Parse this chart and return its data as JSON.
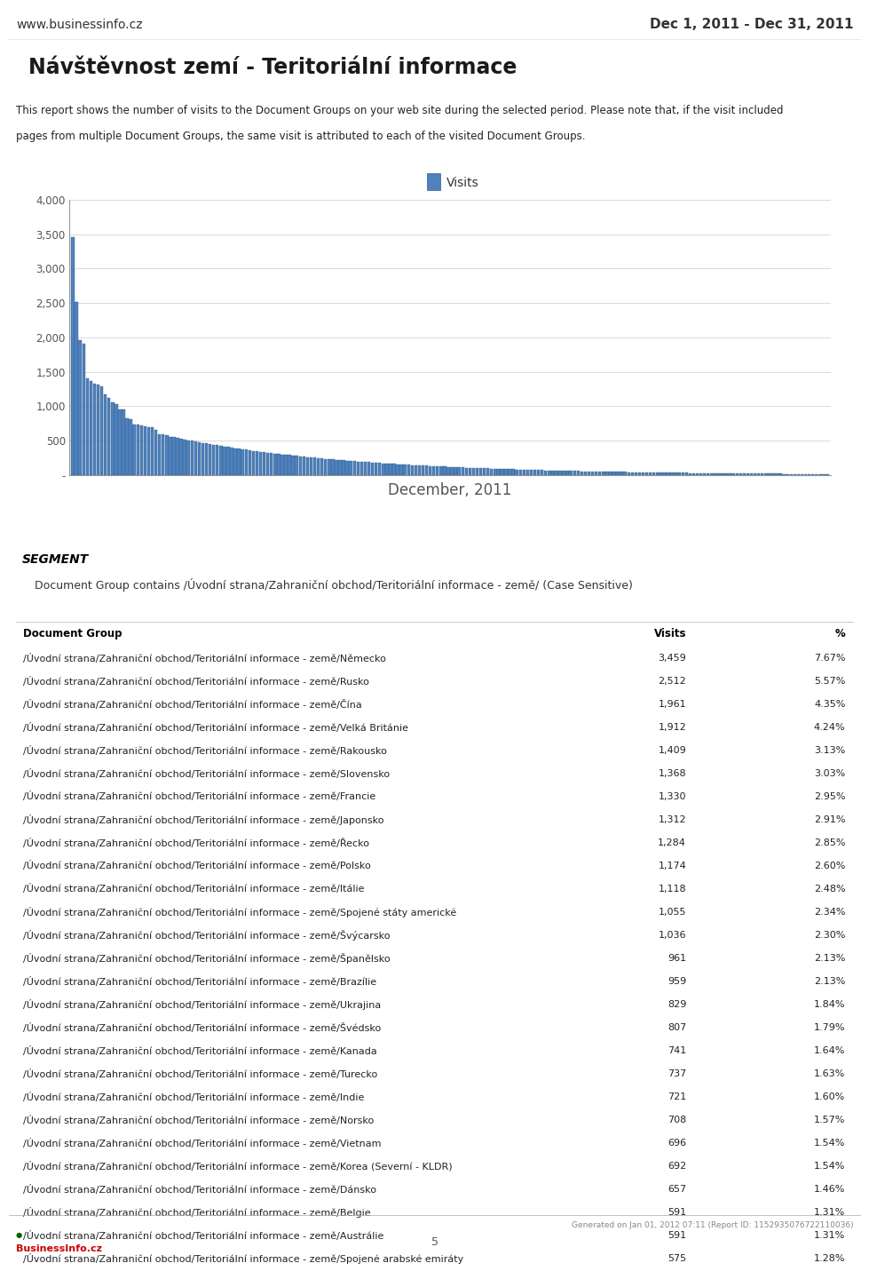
{
  "header_left": "www.businessinfo.cz",
  "header_right": "Dec 1, 2011 - Dec 31, 2011",
  "title": "Návštěvnost zemí - Teritoriální informace",
  "report_desc1": "This report shows the number of visits to the Document Groups on your web site during the selected period. Please note that, if the visit included",
  "report_desc2": "pages from multiple Document Groups, the same visit is attributed to each of the visited Document Groups.",
  "chart_xlabel": "December, 2011",
  "chart_ylabel_ticks": [
    "-",
    "500",
    "1,000",
    "1,500",
    "2,000",
    "2,500",
    "3,000",
    "3,500",
    "4,000"
  ],
  "chart_ylabel_values": [
    0,
    500,
    1000,
    1500,
    2000,
    2500,
    3000,
    3500,
    4000
  ],
  "chart_legend": "Visits",
  "chart_bar_color": "#4f81bd",
  "chart_bar_edge": "#2e5f8a",
  "segment_label": "SEGMENT",
  "segment_desc": "Document Group contains /Úvodní strana/Zahraniční obchod/Teritoriální informace - země/ (Case Sensitive)",
  "table_header": [
    "Document Group",
    "Visits",
    "%"
  ],
  "table_header_bg": "#c0c0c0",
  "table_row_bg_odd": "#ffffff",
  "table_row_bg_even": "#f2f2f2",
  "table_border_color": "#cccccc",
  "table_data": [
    [
      "/Úvodní strana/Zahraniční obchod/Teritoriální informace - země/Německo",
      "3,459",
      "7.67%"
    ],
    [
      "/Úvodní strana/Zahraniční obchod/Teritoriální informace - země/Rusko",
      "2,512",
      "5.57%"
    ],
    [
      "/Úvodní strana/Zahraniční obchod/Teritoriální informace - země/Čína",
      "1,961",
      "4.35%"
    ],
    [
      "/Úvodní strana/Zahraniční obchod/Teritoriální informace - země/Velká Británie",
      "1,912",
      "4.24%"
    ],
    [
      "/Úvodní strana/Zahraniční obchod/Teritoriální informace - země/Rakousko",
      "1,409",
      "3.13%"
    ],
    [
      "/Úvodní strana/Zahraniční obchod/Teritoriální informace - země/Slovensko",
      "1,368",
      "3.03%"
    ],
    [
      "/Úvodní strana/Zahraniční obchod/Teritoriální informace - země/Francie",
      "1,330",
      "2.95%"
    ],
    [
      "/Úvodní strana/Zahraniční obchod/Teritoriální informace - země/Japonsko",
      "1,312",
      "2.91%"
    ],
    [
      "/Úvodní strana/Zahraniční obchod/Teritoriální informace - země/Řecko",
      "1,284",
      "2.85%"
    ],
    [
      "/Úvodní strana/Zahraniční obchod/Teritoriální informace - země/Polsko",
      "1,174",
      "2.60%"
    ],
    [
      "/Úvodní strana/Zahraniční obchod/Teritoriální informace - země/Itálie",
      "1,118",
      "2.48%"
    ],
    [
      "/Úvodní strana/Zahraniční obchod/Teritoriální informace - země/Spojené státy americké",
      "1,055",
      "2.34%"
    ],
    [
      "/Úvodní strana/Zahraniční obchod/Teritoriální informace - země/Švýcarsko",
      "1,036",
      "2.30%"
    ],
    [
      "/Úvodní strana/Zahraniční obchod/Teritoriální informace - země/Španělsko",
      "961",
      "2.13%"
    ],
    [
      "/Úvodní strana/Zahraniční obchod/Teritoriální informace - země/Brazílie",
      "959",
      "2.13%"
    ],
    [
      "/Úvodní strana/Zahraniční obchod/Teritoriální informace - země/Ukrajina",
      "829",
      "1.84%"
    ],
    [
      "/Úvodní strana/Zahraniční obchod/Teritoriální informace - země/Švédsko",
      "807",
      "1.79%"
    ],
    [
      "/Úvodní strana/Zahraniční obchod/Teritoriální informace - země/Kanada",
      "741",
      "1.64%"
    ],
    [
      "/Úvodní strana/Zahraniční obchod/Teritoriální informace - země/Turecko",
      "737",
      "1.63%"
    ],
    [
      "/Úvodní strana/Zahraniční obchod/Teritoriální informace - země/Indie",
      "721",
      "1.60%"
    ],
    [
      "/Úvodní strana/Zahraniční obchod/Teritoriální informace - země/Norsko",
      "708",
      "1.57%"
    ],
    [
      "/Úvodní strana/Zahraniční obchod/Teritoriální informace - země/Vietnam",
      "696",
      "1.54%"
    ],
    [
      "/Úvodní strana/Zahraniční obchod/Teritoriální informace - země/Korea (Severní - KLDR)",
      "692",
      "1.54%"
    ],
    [
      "/Úvodní strana/Zahraniční obchod/Teritoriální informace - země/Dánsko",
      "657",
      "1.46%"
    ],
    [
      "/Úvodní strana/Zahraniční obchod/Teritoriální informace - země/Belgie",
      "591",
      "1.31%"
    ],
    [
      "/Úvodní strana/Zahraniční obchod/Teritoriální informace - země/Austrálie",
      "591",
      "1.31%"
    ],
    [
      "/Úvodní strana/Zahraniční obchod/Teritoriální informace - země/Spojené arabské emiráty",
      "575",
      "1.28%"
    ]
  ],
  "footer_text": "Generated on Jan 01, 2012 07:11 (Report ID: 1152935076722110036)",
  "page_number": "5",
  "bg_color": "#ffffff",
  "header_line_color": "#888888",
  "title_bg": "#e0e0e0",
  "segment_bg": "#dce6f1",
  "chart_area_bg": "#f4f4f4"
}
